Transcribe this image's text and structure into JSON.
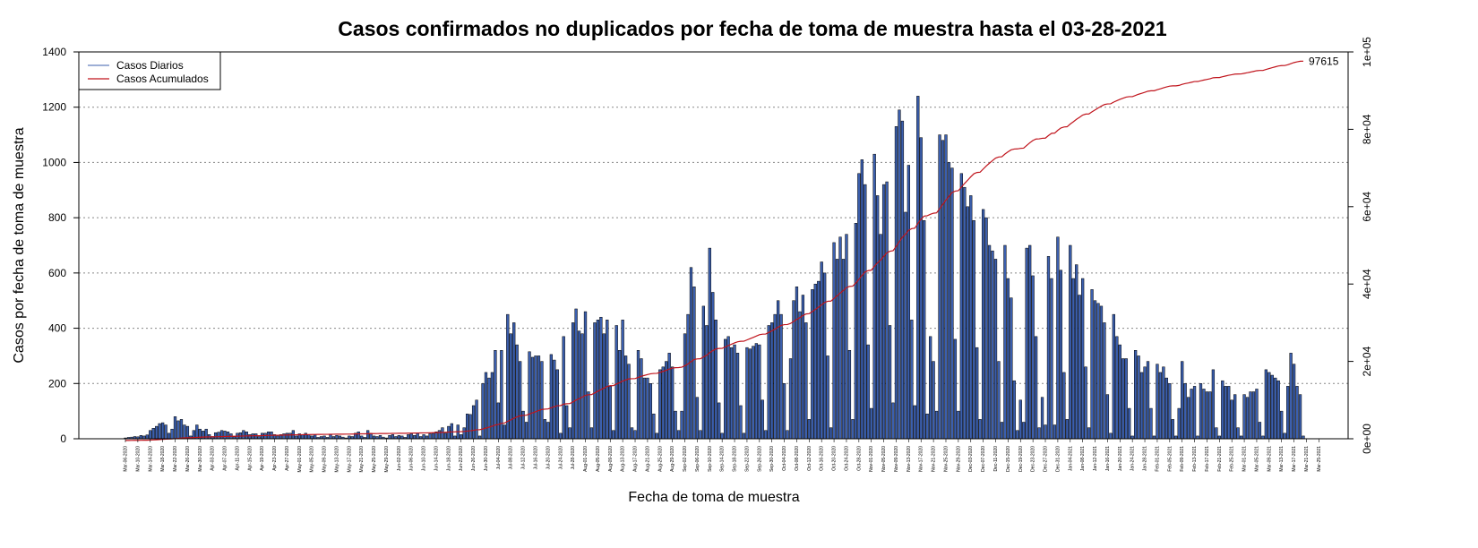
{
  "chart_data": {
    "type": "bar",
    "title": "Casos confirmados no duplicados por fecha de toma de muestra hasta el 03-28-2021",
    "xlabel": "Fecha de toma de muestra",
    "ylabel": "Casos por fecha de toma de muestra",
    "ylim": [
      0,
      1400
    ],
    "yticks": [
      0,
      200,
      400,
      600,
      800,
      1000,
      1200,
      1400
    ],
    "y2lim": [
      0,
      100000
    ],
    "y2ticks": [
      0,
      20000,
      40000,
      60000,
      80000,
      100000
    ],
    "y2tick_labels": [
      "0e+00",
      "2e+04",
      "4e+04",
      "6e+04",
      "8e+04",
      "1e+05"
    ],
    "grid": "horizontal dotted",
    "legend_position": "top-left",
    "start_date": "2020-03-06",
    "date_labels": [
      "Mar-06-2020",
      "Mar-10-2020",
      "Mar-14-2020",
      "Mar-18-2020",
      "Mar-22-2020",
      "Mar-26-2020",
      "Mar-30-2020",
      "Apr-03-2020",
      "Apr-07-2020",
      "Apr-11-2020",
      "Apr-15-2020",
      "Apr-19-2020",
      "Apr-23-2020",
      "Apr-27-2020",
      "May-01-2020",
      "May-05-2020",
      "May-09-2020",
      "May-13-2020",
      "May-17-2020",
      "May-21-2020",
      "May-25-2020",
      "May-29-2020",
      "Jun-02-2020",
      "Jun-06-2020",
      "Jun-10-2020",
      "Jun-14-2020",
      "Jun-18-2020",
      "Jun-22-2020",
      "Jun-26-2020",
      "Jun-30-2020",
      "Jul-04-2020",
      "Jul-08-2020",
      "Jul-12-2020",
      "Jul-16-2020",
      "Jul-20-2020",
      "Jul-24-2020",
      "Jul-28-2020",
      "Aug-01-2020",
      "Aug-05-2020",
      "Aug-09-2020",
      "Aug-13-2020",
      "Aug-17-2020",
      "Aug-21-2020",
      "Aug-25-2020",
      "Aug-29-2020",
      "Sep-02-2020",
      "Sep-06-2020",
      "Sep-10-2020",
      "Sep-14-2020",
      "Sep-18-2020",
      "Sep-22-2020",
      "Sep-26-2020",
      "Sep-30-2020",
      "Oct-04-2020",
      "Oct-08-2020",
      "Oct-12-2020",
      "Oct-16-2020",
      "Oct-20-2020",
      "Oct-24-2020",
      "Oct-28-2020",
      "Nov-01-2020",
      "Nov-05-2020",
      "Nov-09-2020",
      "Nov-13-2020",
      "Nov-17-2020",
      "Nov-21-2020",
      "Nov-25-2020",
      "Nov-29-2020",
      "Dec-03-2020",
      "Dec-07-2020",
      "Dec-11-2020",
      "Dec-15-2020",
      "Dec-19-2020",
      "Dec-23-2020",
      "Dec-27-2020",
      "Dec-31-2020",
      "Jan-04-2021",
      "Jan-08-2021",
      "Jan-12-2021",
      "Jan-16-2021",
      "Jan-20-2021",
      "Jan-24-2021",
      "Jan-28-2021",
      "Feb-01-2021",
      "Feb-05-2021",
      "Feb-09-2021",
      "Feb-13-2021",
      "Feb-17-2021",
      "Feb-21-2021",
      "Feb-25-2021",
      "Mar-01-2021",
      "Mar-05-2021",
      "Mar-09-2021",
      "Mar-13-2021",
      "Mar-17-2021",
      "Mar-21-2021",
      "Mar-25-2021"
    ],
    "series": [
      {
        "name": "Casos Diarios",
        "color": "#3b5fae",
        "values": [
          3,
          5,
          6,
          8,
          7,
          12,
          10,
          14,
          30,
          38,
          45,
          55,
          58,
          50,
          20,
          35,
          80,
          65,
          70,
          50,
          45,
          10,
          30,
          50,
          35,
          28,
          35,
          15,
          8,
          22,
          24,
          30,
          28,
          25,
          18,
          8,
          20,
          22,
          30,
          25,
          15,
          18,
          18,
          8,
          20,
          20,
          25,
          25,
          15,
          10,
          15,
          18,
          20,
          20,
          30,
          10,
          18,
          15,
          20,
          15,
          10,
          15,
          5,
          8,
          10,
          5,
          15,
          8,
          12,
          10,
          6,
          3,
          10,
          8,
          20,
          25,
          10,
          5,
          30,
          20,
          10,
          8,
          12,
          6,
          3,
          12,
          15,
          8,
          12,
          10,
          5,
          15,
          18,
          12,
          20,
          8,
          15,
          10,
          18,
          20,
          25,
          30,
          40,
          20,
          45,
          55,
          10,
          50,
          15,
          40,
          90,
          88,
          120,
          140,
          10,
          200,
          240,
          220,
          240,
          320,
          130,
          320,
          50,
          450,
          380,
          420,
          340,
          280,
          100,
          60,
          315,
          295,
          300,
          300,
          280,
          70,
          60,
          305,
          285,
          250,
          20,
          370,
          120,
          40,
          420,
          470,
          390,
          380,
          460,
          170,
          40,
          420,
          430,
          440,
          380,
          430,
          190,
          30,
          410,
          320,
          430,
          300,
          270,
          40,
          30,
          320,
          290,
          220,
          220,
          200,
          90,
          20,
          250,
          260,
          280,
          310,
          260,
          100,
          30,
          100,
          380,
          450,
          620,
          550,
          150,
          30,
          480,
          410,
          690,
          530,
          430,
          130,
          20,
          360,
          370,
          330,
          340,
          310,
          120,
          20,
          330,
          325,
          335,
          345,
          340,
          140,
          30,
          410,
          420,
          450,
          500,
          450,
          200,
          30,
          290,
          500,
          550,
          460,
          520,
          420,
          70,
          540,
          560,
          570,
          640,
          600,
          300,
          40,
          710,
          650,
          730,
          650,
          740,
          320,
          70,
          780,
          960,
          1010,
          920,
          340,
          110,
          1030,
          880,
          740,
          920,
          930,
          410,
          130,
          1130,
          1190,
          1150,
          820,
          990,
          430,
          120,
          1240,
          1090,
          790,
          90,
          370,
          280,
          100,
          1100,
          1080,
          1100,
          1000,
          980,
          360,
          100,
          960,
          910,
          840,
          880,
          790,
          330,
          70,
          830,
          800,
          700,
          680,
          650,
          280,
          60,
          700,
          580,
          510,
          210,
          30,
          140,
          60,
          690,
          700,
          590,
          370,
          40,
          150,
          50,
          660,
          580,
          50,
          730,
          610,
          240,
          70,
          700,
          580,
          630,
          520,
          580,
          260,
          40,
          540,
          500,
          490,
          480,
          420,
          160,
          20,
          450,
          370,
          340,
          290,
          290,
          110,
          10,
          320,
          300,
          240,
          260,
          280,
          110,
          10,
          270,
          240,
          260,
          220,
          200,
          70,
          10,
          110,
          280,
          200,
          150,
          180,
          190,
          10,
          200,
          180,
          170,
          170,
          250,
          40,
          10,
          210,
          190,
          190,
          140,
          160,
          40,
          10,
          160,
          150,
          170,
          170,
          180,
          60,
          10,
          250,
          240,
          230,
          220,
          210,
          100,
          20,
          190,
          310,
          270,
          190,
          160,
          10
        ]
      },
      {
        "name": "Casos Acumulados",
        "color": "#c0141c",
        "final_label": "97615"
      }
    ]
  }
}
